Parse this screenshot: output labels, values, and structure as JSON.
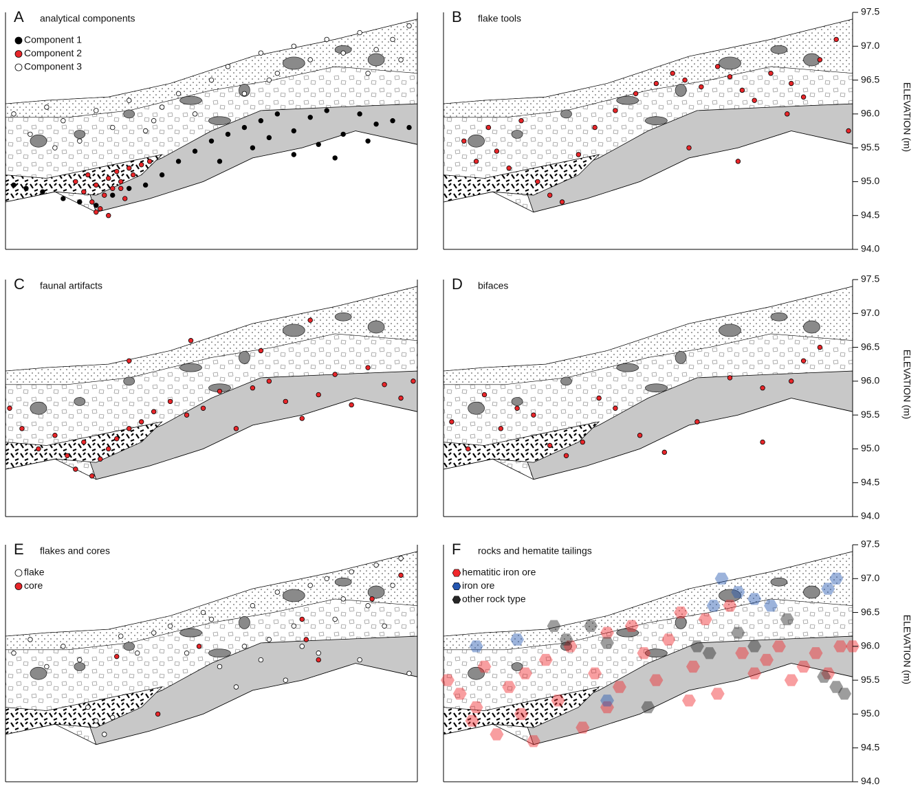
{
  "chart_data": [
    {
      "type": "scatter",
      "label": "A",
      "title": "analytical components",
      "ylim": [
        94.0,
        97.5
      ],
      "xlim": [
        0,
        100
      ],
      "legend": "upper left",
      "series": [
        {
          "name": "Component 1",
          "color": "#000000",
          "x": [
            2,
            5,
            9,
            14,
            18,
            22,
            26,
            30,
            34,
            38,
            42,
            46,
            50,
            54,
            58,
            62,
            66,
            70,
            74,
            78,
            82,
            86,
            90,
            94,
            98,
            60,
            70,
            80,
            88,
            52,
            64,
            76
          ],
          "y": [
            94.95,
            94.9,
            94.85,
            94.75,
            94.7,
            94.65,
            94.8,
            94.9,
            94.95,
            95.1,
            95.3,
            95.45,
            95.6,
            95.7,
            95.8,
            95.9,
            96.0,
            95.75,
            95.95,
            96.05,
            95.7,
            96.0,
            95.85,
            95.9,
            95.8,
            95.5,
            95.4,
            95.35,
            95.6,
            95.3,
            95.65,
            95.55
          ]
        },
        {
          "name": "Component 2",
          "color": "#e8262a",
          "x": [
            17,
            19,
            20,
            21,
            22,
            23,
            24,
            25,
            26,
            27,
            28,
            29,
            30,
            31,
            33,
            35,
            22,
            25,
            28
          ],
          "y": [
            95.0,
            94.85,
            95.1,
            94.7,
            94.95,
            94.6,
            94.8,
            95.05,
            94.9,
            95.15,
            95.0,
            94.75,
            95.2,
            95.1,
            95.25,
            95.3,
            94.55,
            94.5,
            94.9
          ]
        },
        {
          "name": "Component 3",
          "color": "#ffffff",
          "x": [
            2,
            6,
            10,
            14,
            18,
            22,
            26,
            30,
            34,
            38,
            42,
            46,
            50,
            54,
            58,
            62,
            66,
            70,
            74,
            78,
            82,
            86,
            90,
            94,
            98,
            12,
            36,
            64,
            88,
            96
          ],
          "y": [
            96.0,
            95.7,
            96.1,
            95.9,
            95.6,
            96.05,
            95.8,
            96.2,
            95.75,
            96.1,
            96.3,
            96.0,
            96.5,
            96.7,
            96.3,
            96.9,
            96.6,
            97.0,
            96.8,
            97.1,
            96.9,
            97.2,
            96.95,
            97.1,
            97.3,
            95.5,
            95.9,
            96.5,
            96.6,
            96.8
          ]
        }
      ]
    },
    {
      "type": "scatter",
      "label": "B",
      "title": "flake tools",
      "ylim": [
        94.0,
        97.5
      ],
      "xlim": [
        0,
        100
      ],
      "ylabel": "ELEVATION (m)",
      "yticks": [
        94.5,
        {
          "value": 94.0,
          "label": "94.0"
        },
        95.5,
        {
          "value": 95.0,
          "label": "95.0"
        },
        96.5,
        {
          "value": 96.0,
          "label": "96.0"
        },
        97.5,
        {
          "value": 97.0,
          "label": "97.0"
        }
      ],
      "series": [
        {
          "color": "#e8262a",
          "x": [
            5,
            8,
            11,
            13,
            16,
            19,
            23,
            26,
            29,
            33,
            37,
            42,
            47,
            52,
            56,
            59,
            63,
            67,
            70,
            73,
            76,
            80,
            84,
            88,
            92,
            96,
            99,
            60,
            72,
            85
          ],
          "y": [
            95.6,
            95.3,
            95.8,
            95.45,
            95.2,
            95.9,
            95.0,
            94.8,
            94.7,
            95.4,
            95.8,
            96.05,
            96.3,
            96.45,
            96.6,
            96.5,
            96.4,
            96.7,
            96.55,
            96.35,
            96.2,
            96.6,
            96.0,
            96.25,
            96.8,
            97.1,
            95.75,
            95.5,
            95.3,
            96.45
          ]
        }
      ]
    },
    {
      "type": "scatter",
      "label": "C",
      "title": "faunal artifacts",
      "ylim": [
        94.0,
        97.5
      ],
      "xlim": [
        0,
        100
      ],
      "series": [
        {
          "color": "#e8262a",
          "x": [
            1,
            4,
            8,
            12,
            15,
            17,
            19,
            21,
            23,
            25,
            27,
            30,
            33,
            36,
            40,
            44,
            48,
            52,
            56,
            60,
            64,
            68,
            72,
            76,
            80,
            84,
            88,
            92,
            96,
            99,
            30,
            45,
            62,
            74
          ],
          "y": [
            95.6,
            95.3,
            95.0,
            95.2,
            94.9,
            94.7,
            95.1,
            94.6,
            94.85,
            95.0,
            95.15,
            95.3,
            95.4,
            95.55,
            95.7,
            95.5,
            95.6,
            95.85,
            95.3,
            95.9,
            96.0,
            95.7,
            95.45,
            95.8,
            96.1,
            95.65,
            96.2,
            95.95,
            95.75,
            96.0,
            96.3,
            96.6,
            96.45,
            96.9
          ]
        }
      ]
    },
    {
      "type": "scatter",
      "label": "D",
      "title": "bifaces",
      "ylim": [
        94.0,
        97.5
      ],
      "xlim": [
        0,
        100
      ],
      "ylabel": "ELEVATION (m)",
      "yticks": [
        94.5,
        {
          "value": 94.0,
          "label": "94.0"
        },
        95.5,
        {
          "value": 95.0,
          "label": "95.0"
        },
        96.5,
        {
          "value": 96.0,
          "label": "96.0"
        },
        97.5,
        {
          "value": 97.0,
          "label": "97.0"
        }
      ],
      "series": [
        {
          "color": "#e8262a",
          "x": [
            2,
            6,
            10,
            14,
            18,
            22,
            26,
            30,
            34,
            38,
            42,
            48,
            54,
            62,
            70,
            78,
            85,
            88,
            78,
            92
          ],
          "y": [
            95.4,
            95.0,
            95.8,
            95.3,
            95.6,
            95.5,
            95.05,
            94.9,
            95.1,
            95.75,
            95.6,
            95.2,
            94.95,
            95.4,
            96.05,
            95.9,
            96.0,
            96.3,
            95.1,
            96.5
          ]
        }
      ]
    },
    {
      "type": "scatter",
      "label": "E",
      "title": "flakes and cores",
      "ylim": [
        94.0,
        97.5
      ],
      "xlim": [
        0,
        100
      ],
      "legend": "upper left",
      "series": [
        {
          "name": "flake",
          "color": "#ffffff",
          "x": [
            2,
            6,
            10,
            14,
            18,
            22,
            24,
            28,
            32,
            36,
            40,
            44,
            48,
            52,
            56,
            60,
            62,
            64,
            66,
            68,
            70,
            72,
            74,
            76,
            78,
            80,
            82,
            84,
            86,
            88,
            90,
            92,
            94,
            96,
            98,
            20,
            26,
            50,
            58
          ],
          "y": [
            95.9,
            96.1,
            95.7,
            96.0,
            95.8,
            94.9,
            94.7,
            96.15,
            95.9,
            96.2,
            96.3,
            95.9,
            96.5,
            95.7,
            95.4,
            96.6,
            95.8,
            96.1,
            96.8,
            95.5,
            96.3,
            96.0,
            96.9,
            95.9,
            97.0,
            96.4,
            96.7,
            97.1,
            95.8,
            96.6,
            97.2,
            96.3,
            96.9,
            97.3,
            95.6,
            95.1,
            94.95,
            96.4,
            96.0
          ]
        },
        {
          "name": "core",
          "color": "#e8262a",
          "x": [
            27,
            47,
            72,
            73,
            76,
            89,
            37,
            96
          ],
          "y": [
            95.85,
            96.0,
            96.4,
            96.1,
            95.8,
            96.7,
            95.0,
            97.05
          ]
        }
      ]
    },
    {
      "type": "scatter",
      "label": "F",
      "title": "rocks and hematite tailings",
      "ylim": [
        94.0,
        97.5
      ],
      "xlim": [
        0,
        100
      ],
      "ylabel": "ELEVATION (m)",
      "legend": "upper left",
      "marker": "hexagon",
      "alpha": 0.45,
      "yticks": [
        94.5,
        {
          "value": 94.0,
          "label": "94.0"
        },
        95.5,
        {
          "value": 95.0,
          "label": "95.0"
        },
        96.5,
        {
          "value": 96.0,
          "label": "96.0"
        },
        97.5,
        {
          "value": 97.0,
          "label": "97.0"
        }
      ],
      "series": [
        {
          "name": "hematitic iron ore",
          "color": "#f0282c",
          "x": [
            1,
            4,
            7,
            10,
            13,
            16,
            19,
            22,
            25,
            28,
            31,
            34,
            37,
            40,
            43,
            46,
            49,
            52,
            55,
            58,
            61,
            64,
            67,
            70,
            73,
            76,
            79,
            82,
            85,
            88,
            91,
            94,
            97,
            100,
            8,
            20,
            40,
            60
          ],
          "y": [
            95.5,
            95.3,
            94.9,
            95.7,
            94.7,
            95.4,
            95.0,
            94.6,
            95.8,
            95.2,
            96.0,
            94.8,
            95.6,
            96.2,
            95.4,
            96.3,
            95.9,
            95.5,
            96.1,
            96.5,
            95.7,
            96.4,
            95.3,
            96.6,
            95.9,
            95.6,
            95.8,
            96.0,
            95.5,
            95.7,
            95.9,
            95.6,
            96.0,
            96.0,
            95.1,
            95.6,
            95.1,
            95.2
          ]
        },
        {
          "name": "iron ore",
          "color": "#2456b0",
          "x": [
            8,
            18,
            40,
            66,
            68,
            72,
            76,
            80,
            94,
            96
          ],
          "y": [
            96.0,
            96.1,
            95.2,
            96.6,
            97.0,
            96.8,
            96.7,
            96.6,
            96.85,
            97.0
          ]
        },
        {
          "name": "other rock type",
          "color": "#262626",
          "x": [
            27,
            30,
            36,
            40,
            62,
            65,
            72,
            76,
            84,
            93,
            96,
            98,
            50
          ],
          "y": [
            96.3,
            96.1,
            96.3,
            96.05,
            96.0,
            95.9,
            96.2,
            96.0,
            96.4,
            95.55,
            95.4,
            95.3,
            95.1
          ]
        }
      ]
    }
  ]
}
